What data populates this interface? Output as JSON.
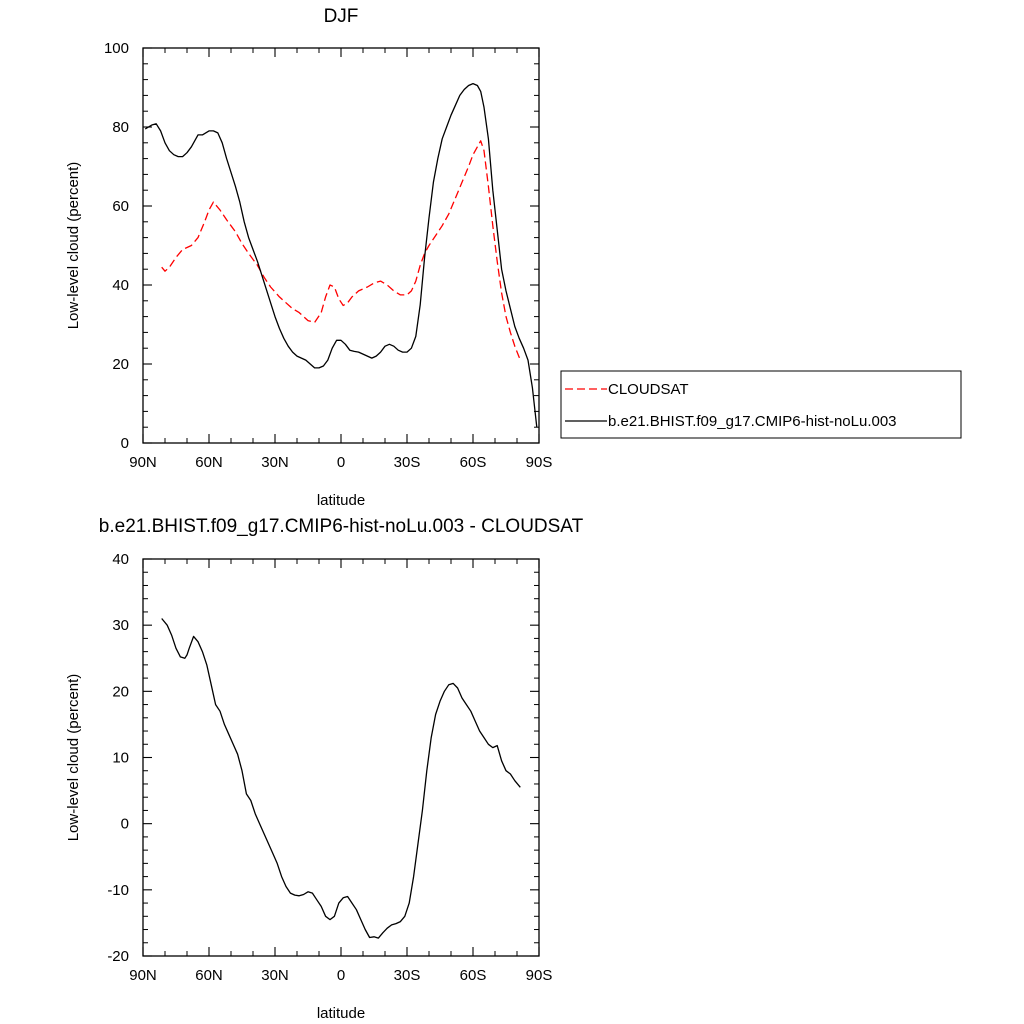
{
  "chart_data": [
    {
      "type": "line",
      "title": "DJF",
      "xlabel": "latitude",
      "ylabel": "Low-level cloud (percent)",
      "xlim": [
        90,
        -90
      ],
      "ylim": [
        0,
        100
      ],
      "xticks": [
        90,
        60,
        30,
        0,
        -30,
        -60,
        -90
      ],
      "xtick_labels": [
        "90N",
        "60N",
        "30N",
        "0",
        "30S",
        "60S",
        "90S"
      ],
      "yticks": [
        0,
        20,
        40,
        60,
        80,
        100
      ],
      "ytick_labels": [
        "0",
        "20",
        "40",
        "60",
        "80",
        "100"
      ],
      "legend": {
        "placement": "right"
      },
      "series": [
        {
          "name": "CLOUDSAT",
          "color": "#ff0000",
          "dash": "dashed",
          "x": [
            81.5,
            80,
            78,
            75,
            72,
            68,
            65,
            62,
            60,
            58,
            55,
            52,
            48,
            45,
            42,
            38,
            35,
            32,
            28,
            25,
            22,
            19,
            17,
            15,
            12,
            9,
            7,
            5,
            3,
            1,
            -1,
            -3,
            -5,
            -8,
            -12,
            -15,
            -18,
            -21,
            -24,
            -27,
            -30,
            -32,
            -34,
            -36,
            -38,
            -40,
            -43,
            -46,
            -49,
            -52,
            -55,
            -58,
            -60,
            -62,
            -63.5,
            -65,
            -67,
            -69,
            -71,
            -73,
            -75,
            -77,
            -79,
            -81.5
          ],
          "y": [
            44.5,
            43.5,
            44.5,
            47,
            49,
            50,
            52,
            56,
            59,
            61,
            59,
            56.5,
            53.5,
            50.5,
            48,
            45,
            42,
            39.5,
            37,
            35.5,
            34,
            33,
            32,
            31,
            30.5,
            33,
            37,
            40,
            39.5,
            36.5,
            34.8,
            35.5,
            37,
            38.5,
            39.5,
            40.5,
            41,
            40,
            38.5,
            37.5,
            37.5,
            38.5,
            41,
            45,
            48,
            50,
            52.5,
            55,
            58,
            62,
            66,
            70,
            73,
            75,
            76.5,
            74,
            65,
            55,
            46,
            38,
            32,
            28,
            24.5,
            21
          ]
        },
        {
          "name": "b.e21.BHIST.f09_g17.CMIP6-hist-noLu.003",
          "color": "#000000",
          "dash": "solid",
          "x": [
            89,
            86,
            84,
            82,
            80,
            78,
            76,
            74,
            72,
            70,
            68,
            65,
            63,
            60,
            58,
            56,
            54,
            52,
            50,
            48,
            46,
            44,
            42,
            40,
            38,
            36,
            34,
            32,
            30,
            28,
            26,
            24,
            22,
            20,
            18,
            16,
            14,
            12,
            10,
            8,
            6,
            4,
            2,
            0,
            -2,
            -4,
            -6,
            -8,
            -10,
            -12,
            -14,
            -16,
            -18,
            -20,
            -22,
            -24,
            -26,
            -28,
            -30,
            -32,
            -34,
            -36,
            -38,
            -40,
            -42,
            -44,
            -46,
            -48,
            -50,
            -52,
            -54,
            -56,
            -58,
            -60,
            -62,
            -63.5,
            -65,
            -67,
            -69,
            -71,
            -73,
            -75,
            -77,
            -79,
            -81,
            -83,
            -85,
            -87,
            -89
          ],
          "y": [
            79.5,
            80.5,
            80.8,
            79,
            76,
            74,
            73,
            72.5,
            72.5,
            73.5,
            75,
            78,
            78,
            79,
            79,
            78.5,
            76,
            72,
            68.5,
            65,
            61,
            56,
            52,
            49,
            46,
            42.5,
            39,
            35.5,
            32,
            29,
            26.5,
            24.5,
            23,
            22,
            21.5,
            21,
            20,
            19,
            19,
            19.5,
            21,
            24,
            26,
            26,
            25,
            23.5,
            23.2,
            23,
            22.5,
            22,
            21.5,
            22,
            23,
            24.5,
            25,
            24.5,
            23.5,
            23,
            23,
            24,
            27,
            35,
            47,
            57,
            66,
            72,
            77,
            80,
            83,
            85.5,
            88,
            89.5,
            90.5,
            91,
            90.5,
            89,
            85,
            77,
            64,
            54,
            44,
            38.5,
            34,
            29.5,
            26.5,
            24,
            21,
            14,
            4
          ]
        }
      ]
    },
    {
      "type": "line",
      "title": "b.e21.BHIST.f09_g17.CMIP6-hist-noLu.003 - CLOUDSAT",
      "xlabel": "latitude",
      "ylabel": "Low-level cloud (percent)",
      "xlim": [
        90,
        -90
      ],
      "ylim": [
        -20,
        40
      ],
      "xticks": [
        90,
        60,
        30,
        0,
        -30,
        -60,
        -90
      ],
      "xtick_labels": [
        "90N",
        "60N",
        "30N",
        "0",
        "30S",
        "60S",
        "90S"
      ],
      "yticks": [
        -20,
        -10,
        0,
        10,
        20,
        30,
        40
      ],
      "ytick_labels": [
        "-20",
        "-10",
        "0",
        "10",
        "20",
        "30",
        "40"
      ],
      "series": [
        {
          "name": "b.e21.BHIST.f09_g17.CMIP6-hist-noLu.003 - CLOUDSAT",
          "color": "#000000",
          "dash": "solid",
          "x": [
            81.5,
            79,
            77,
            75,
            73,
            71,
            70,
            69,
            67,
            65,
            63,
            61,
            59,
            57,
            55,
            53,
            51,
            49,
            47,
            45,
            43,
            41,
            39,
            37,
            35,
            33,
            31,
            29,
            27,
            25,
            23,
            21,
            19,
            17,
            15,
            13,
            11,
            9,
            7,
            5,
            3,
            1,
            -1,
            -3,
            -5,
            -7,
            -9,
            -11,
            -13,
            -15,
            -17,
            -19,
            -21,
            -23,
            -25,
            -27,
            -29,
            -31,
            -33,
            -35,
            -37,
            -39,
            -41,
            -43,
            -45,
            -47,
            -49,
            -51,
            -53,
            -55,
            -57,
            -59,
            -61,
            -63,
            -65,
            -67,
            -69,
            -71,
            -73,
            -75,
            -77,
            -79,
            -81.5
          ],
          "y": [
            31,
            30,
            28.5,
            26.5,
            25.2,
            25,
            25.5,
            26.5,
            28.3,
            27.5,
            26,
            24,
            21,
            18,
            17,
            15,
            13.5,
            12,
            10.5,
            8,
            4.5,
            3.5,
            1.5,
            0,
            -1.5,
            -3,
            -4.5,
            -6,
            -8,
            -9.5,
            -10.5,
            -10.8,
            -10.9,
            -10.7,
            -10.3,
            -10.5,
            -11.5,
            -12.5,
            -14,
            -14.5,
            -14,
            -12,
            -11.2,
            -11,
            -12,
            -13,
            -14.5,
            -16,
            -17.2,
            -17.1,
            -17.3,
            -16.5,
            -15.8,
            -15.3,
            -15.1,
            -14.8,
            -14,
            -12,
            -8,
            -3,
            2,
            8,
            13,
            16.5,
            18.5,
            20,
            21,
            21.2,
            20.5,
            19,
            18,
            17,
            15.5,
            14,
            13,
            12,
            11.5,
            11.8,
            9.5,
            8,
            7.5,
            6.5,
            5.5
          ]
        }
      ]
    }
  ]
}
